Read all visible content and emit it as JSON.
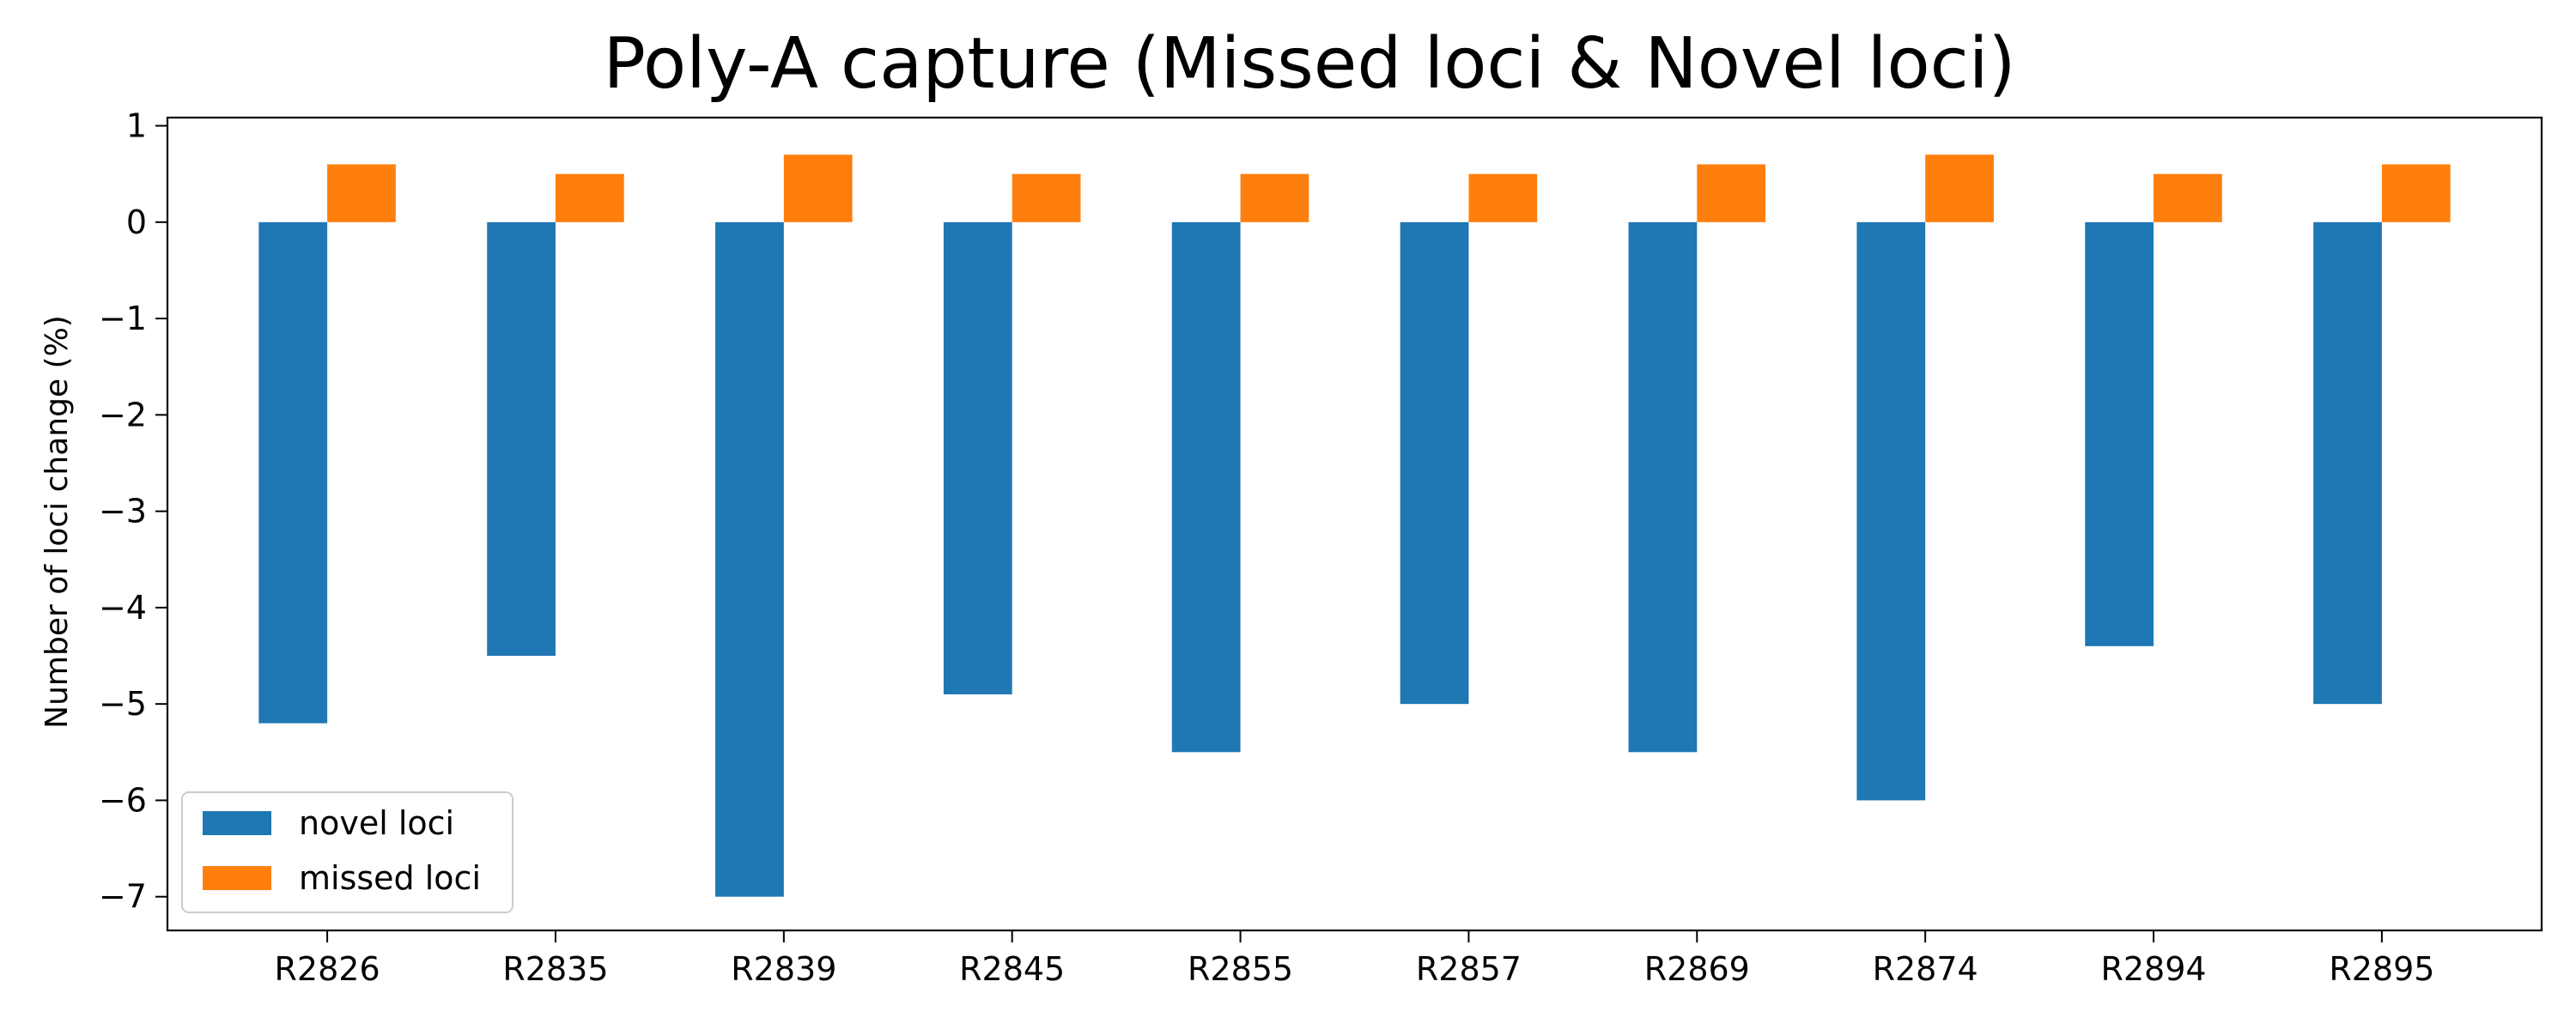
{
  "chart_data": {
    "type": "bar",
    "title": "Poly-A capture (Missed loci & Novel loci)",
    "xlabel": "",
    "ylabel": "Number of loci change (%)",
    "categories": [
      "R2826",
      "R2835",
      "R2839",
      "R2845",
      "R2855",
      "R2857",
      "R2869",
      "R2874",
      "R2894",
      "R2895"
    ],
    "series": [
      {
        "name": "novel loci",
        "color": "#1f77b4",
        "values": [
          -5.2,
          -4.5,
          -7.0,
          -4.9,
          -5.5,
          -5.0,
          -5.5,
          -6.0,
          -4.4,
          -5.0
        ]
      },
      {
        "name": "missed loci",
        "color": "#ff7f0e",
        "values": [
          0.6,
          0.5,
          0.7,
          0.5,
          0.5,
          0.5,
          0.6,
          0.7,
          0.5,
          0.6
        ]
      }
    ],
    "ylim": [
      -7.35,
      1.085
    ],
    "yticks": [
      1,
      0,
      -1,
      -2,
      -3,
      -4,
      -5,
      -6,
      -7
    ],
    "grid": false,
    "legend_position": "lower-left"
  }
}
